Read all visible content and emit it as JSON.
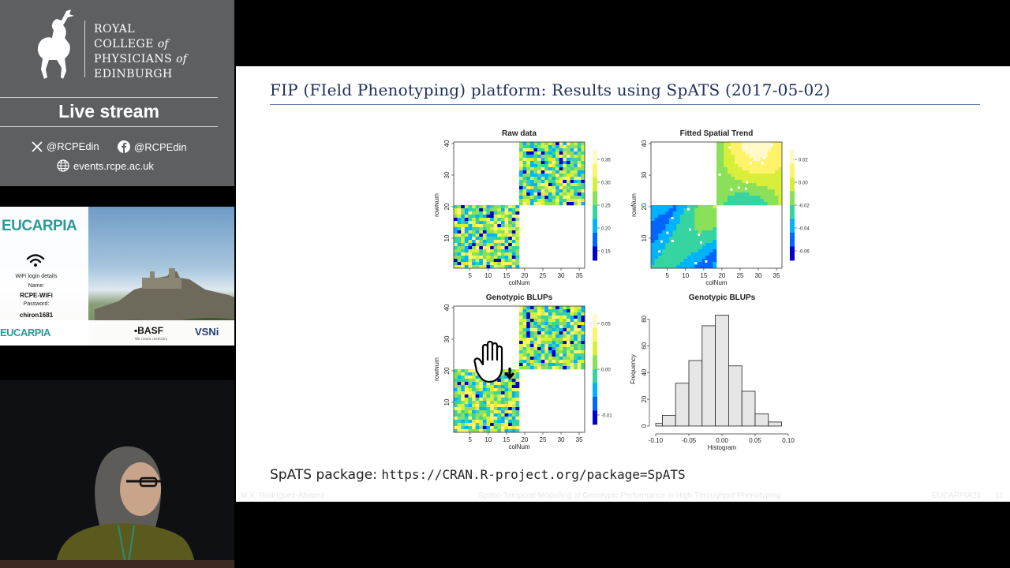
{
  "sidebar": {
    "college": {
      "line1": "ROYAL",
      "line2": "COLLEGE",
      "of1": "of",
      "line3": "PHYSICIANS",
      "of2": "of",
      "line4": "EDINBURGH"
    },
    "live_stream": "Live stream",
    "social": {
      "x_handle": "@RCPEdin",
      "facebook_handle": "@RCPEdin",
      "website": "events.rcpe.ac.uk"
    },
    "banner": {
      "eucarpia": "EUCARPIA",
      "wifi_title": "WiFi login details",
      "wifi_name_label": "Name:",
      "wifi_name": "RCPE-WiFi",
      "wifi_password_label": "Password:",
      "wifi_password": "chiron1681",
      "footer_eucarpia": "EUCARPIA",
      "basf": "BASF",
      "basf_tagline": "We create chemistry",
      "vsni": "VSNi"
    }
  },
  "slide": {
    "title": "FIP (FIeld Phenotyping) platform: Results using SpATS (2017-05-02)",
    "package_label": "SpATS package:",
    "package_url": "https://CRAN.R-project.org/package=SpATS",
    "footer_author": "M.X. Rodríguez-Álvarez",
    "footer_talk": "Spatio-Temporal Modelling of Genotypic Performance in High Throughput Phenotyping",
    "footer_event": "EUCARPIA25",
    "footer_page": "11"
  },
  "colors": {
    "slide_title": "#20305c",
    "sidebar_bg": "#5d5f61",
    "histogram_fill": "#e6e6e6"
  },
  "chart_data": [
    {
      "type": "heatmap",
      "title": "Raw data",
      "xlabel": "colNum",
      "ylabel": "rowNum",
      "xticks": [
        5,
        10,
        15,
        20,
        25,
        30,
        35
      ],
      "yticks": [
        10,
        20,
        30,
        40
      ],
      "colorbar_ticks": [
        "0.35",
        "0.30",
        "0.25",
        "0.20",
        "0.15"
      ]
    },
    {
      "type": "heatmap",
      "title": "Fitted Spatial Trend",
      "xlabel": "colNum",
      "ylabel": "rowNum",
      "xticks": [
        5,
        10,
        15,
        20,
        25,
        30,
        35
      ],
      "yticks": [
        10,
        20,
        30,
        40
      ],
      "colorbar_ticks": [
        "0.02",
        "0.00",
        "-0.02",
        "-0.04",
        "-0.06"
      ]
    },
    {
      "type": "heatmap",
      "title": "Genotypic BLUPs",
      "xlabel": "colNum",
      "ylabel": "rowNum",
      "xticks": [
        5,
        10,
        15,
        20,
        25,
        30,
        35
      ],
      "yticks": [
        10,
        20,
        30,
        40
      ],
      "colorbar_ticks": [
        "0.05",
        "0.00",
        "-0.01"
      ]
    },
    {
      "type": "bar",
      "title": "Genotypic BLUPs",
      "xlabel": "Histogram",
      "ylabel": "Frequency",
      "bins": [
        [
          -0.1,
          -0.09
        ],
        [
          -0.09,
          -0.07
        ],
        [
          -0.07,
          -0.05
        ],
        [
          -0.05,
          -0.03
        ],
        [
          -0.03,
          -0.01
        ],
        [
          -0.01,
          0.01
        ],
        [
          0.01,
          0.03
        ],
        [
          0.03,
          0.05
        ],
        [
          0.05,
          0.07
        ],
        [
          0.07,
          0.09
        ]
      ],
      "values": [
        2,
        8,
        32,
        49,
        75,
        83,
        45,
        26,
        9,
        3
      ],
      "xticks": [
        "-0.10",
        "-0.05",
        "0.00",
        "0.05",
        "0.10"
      ],
      "yticks": [
        "0",
        "20",
        "40",
        "60",
        "80"
      ],
      "xlim": [
        -0.1,
        0.1
      ],
      "ylim": [
        0,
        85
      ]
    }
  ]
}
